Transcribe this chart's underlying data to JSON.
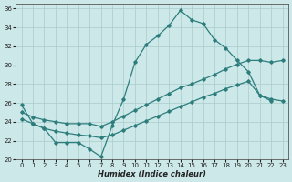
{
  "xlabel": "Humidex (Indice chaleur)",
  "xlim": [
    -0.5,
    23.5
  ],
  "ylim": [
    20,
    36.5
  ],
  "yticks": [
    20,
    22,
    24,
    26,
    28,
    30,
    32,
    34,
    36
  ],
  "xticks": [
    0,
    1,
    2,
    3,
    4,
    5,
    6,
    7,
    8,
    9,
    10,
    11,
    12,
    13,
    14,
    15,
    16,
    17,
    18,
    19,
    20,
    21,
    22,
    23
  ],
  "bg_color": "#cce8e8",
  "grid_color": "#aacccc",
  "line_color": "#2d7d7d",
  "line1_x": [
    0,
    1,
    2,
    3,
    4,
    5,
    6,
    7,
    8,
    9,
    10,
    11,
    12,
    13,
    14,
    15,
    16,
    17,
    18,
    19,
    20,
    21,
    22
  ],
  "line1_y": [
    25.8,
    23.8,
    23.3,
    21.8,
    21.8,
    21.8,
    21.1,
    20.3,
    23.6,
    26.4,
    30.3,
    32.2,
    33.1,
    34.2,
    35.8,
    34.8,
    34.4,
    32.7,
    31.8,
    30.5,
    29.3,
    26.8,
    26.2
  ],
  "line2_x": [
    0,
    1,
    2,
    3,
    4,
    5,
    6,
    7,
    8,
    9,
    10,
    11,
    12,
    13,
    14,
    15,
    16,
    17,
    18,
    19,
    20,
    21,
    22,
    23
  ],
  "line2_y": [
    25.0,
    24.5,
    24.2,
    24.0,
    23.8,
    23.8,
    23.8,
    23.5,
    24.0,
    24.6,
    25.2,
    25.8,
    26.4,
    27.0,
    27.6,
    28.0,
    28.5,
    29.0,
    29.6,
    30.1,
    30.5,
    30.5,
    30.3,
    30.5
  ],
  "line3_x": [
    0,
    1,
    2,
    3,
    4,
    5,
    6,
    7,
    8,
    9,
    10,
    11,
    12,
    13,
    14,
    15,
    16,
    17,
    18,
    19,
    20,
    21,
    22,
    23
  ],
  "line3_y": [
    24.3,
    23.8,
    23.3,
    23.0,
    22.8,
    22.6,
    22.5,
    22.3,
    22.6,
    23.1,
    23.6,
    24.1,
    24.6,
    25.1,
    25.6,
    26.1,
    26.6,
    27.0,
    27.5,
    27.9,
    28.3,
    26.8,
    26.4,
    26.2
  ]
}
